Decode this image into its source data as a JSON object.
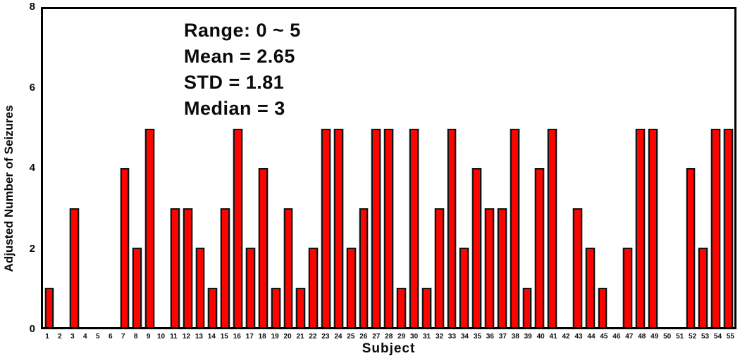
{
  "chart_data": {
    "type": "bar",
    "title": "",
    "xlabel": "Subject",
    "ylabel": "Adjusted Number of Seizures",
    "ylim": [
      0,
      8
    ],
    "yticks": [
      0,
      2,
      4,
      6,
      8
    ],
    "grid": false,
    "legend": false,
    "bar_color": "#fa0500",
    "bar_border_color": "#141414",
    "categories": [
      "1",
      "2",
      "3",
      "4",
      "5",
      "6",
      "7",
      "8",
      "9",
      "10",
      "11",
      "12",
      "13",
      "14",
      "15",
      "16",
      "17",
      "18",
      "19",
      "20",
      "21",
      "22",
      "23",
      "24",
      "25",
      "26",
      "27",
      "28",
      "29",
      "30",
      "31",
      "32",
      "33",
      "34",
      "35",
      "36",
      "37",
      "38",
      "39",
      "40",
      "41",
      "42",
      "43",
      "44",
      "45",
      "46",
      "47",
      "48",
      "49",
      "50",
      "51",
      "52",
      "53",
      "54",
      "55"
    ],
    "values": [
      1,
      0,
      3,
      0,
      0,
      0,
      4,
      2,
      5,
      0,
      3,
      3,
      2,
      1,
      3,
      5,
      2,
      4,
      1,
      3,
      1,
      2,
      5,
      5,
      2,
      3,
      5,
      5,
      1,
      5,
      1,
      3,
      5,
      2,
      4,
      3,
      3,
      5,
      1,
      4,
      5,
      0,
      3,
      2,
      1,
      0,
      2,
      5,
      5,
      0,
      0,
      4,
      2,
      5,
      5
    ],
    "annotation_lines": [
      "Range: 0 ~ 5",
      "Mean = 2.65",
      "STD = 1.81",
      "Median = 3"
    ]
  }
}
